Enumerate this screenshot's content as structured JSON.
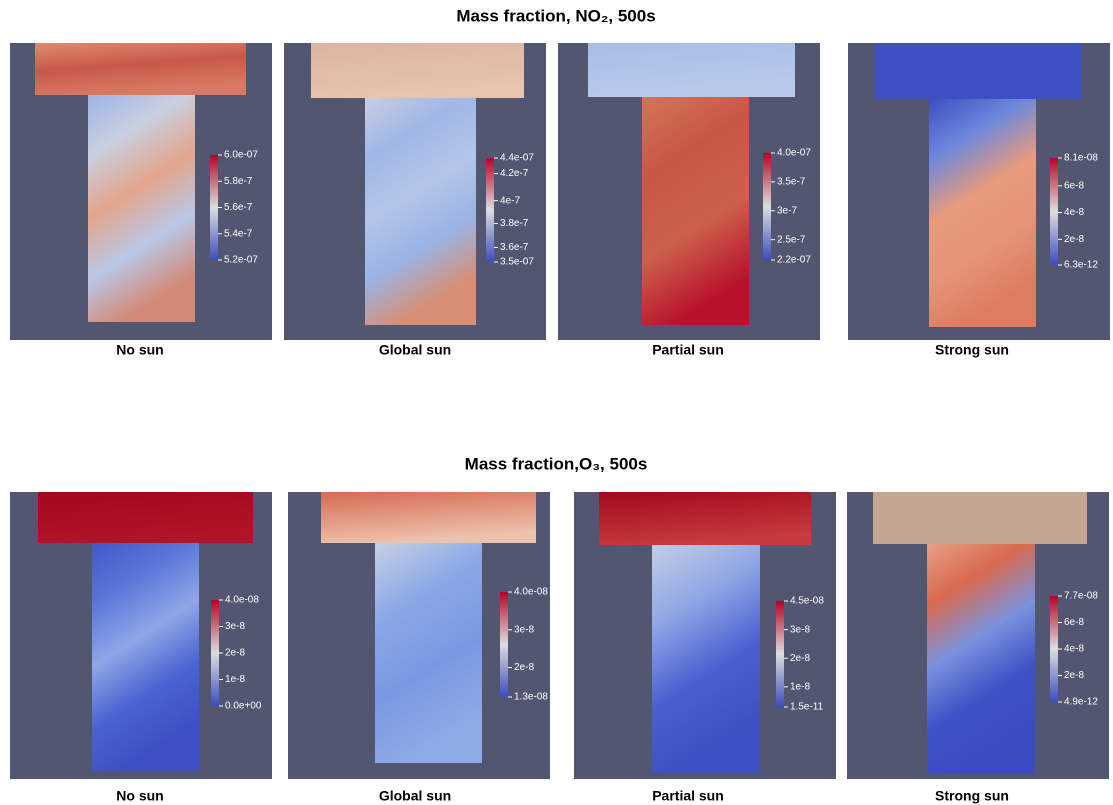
{
  "rows": [
    {
      "title": "Mass fraction, NO₂, 500s",
      "panels": [
        {
          "label": "No sun",
          "colorbar_ticks": [
            "6.0e-07",
            "5.8e-7",
            "5.6e-7",
            "5.4e-7",
            "5.2e-07"
          ]
        },
        {
          "label": "Global sun",
          "colorbar_ticks": [
            "4.4e-07",
            "4.2e-7",
            "4e-7",
            "3.8e-7",
            "3.6e-7",
            "3.5e-07"
          ]
        },
        {
          "label": "Partial sun",
          "colorbar_ticks": [
            "4.0e-07",
            "3.5e-7",
            "3e-7",
            "2.5e-7",
            "2.2e-07"
          ]
        },
        {
          "label": "Strong sun",
          "colorbar_ticks": [
            "8.1e-08",
            "6e-8",
            "4e-8",
            "2e-8",
            "6.3e-12"
          ]
        }
      ]
    },
    {
      "title": "Mass fraction,O₃, 500s",
      "panels": [
        {
          "label": "No sun",
          "colorbar_ticks": [
            "4.0e-08",
            "3e-8",
            "2e-8",
            "1e-8",
            "0.0e+00"
          ]
        },
        {
          "label": "Global sun",
          "colorbar_ticks": [
            "4.0e-08",
            "3e-8",
            "2e-8",
            "1.3e-08"
          ]
        },
        {
          "label": "Partial sun",
          "colorbar_ticks": [
            "4.5e-08",
            "3e-8",
            "2e-8",
            "1e-8",
            "1.5e-11"
          ]
        },
        {
          "label": "Strong sun",
          "colorbar_ticks": [
            "7.7e-08",
            "6e-8",
            "4e-8",
            "2e-8",
            "4.9e-12"
          ]
        }
      ]
    }
  ]
}
